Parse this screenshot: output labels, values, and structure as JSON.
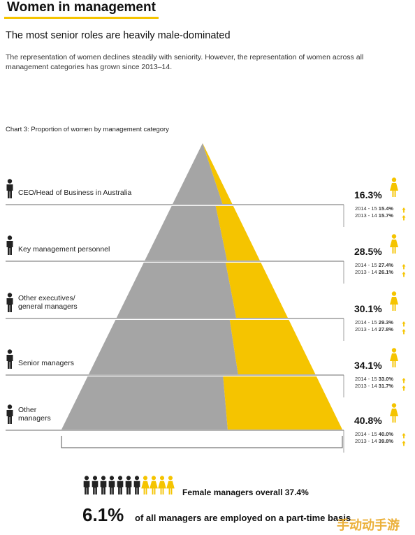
{
  "header": {
    "title": "Women in management",
    "subtitle": "The most senior roles are heavily male-dominated",
    "description": "The representation of women declines steadily with seniority. However, the representation of women across all management categories has grown since 2013–14."
  },
  "colors": {
    "male": "#a5a5a5",
    "female": "#f5c400",
    "text": "#222222"
  },
  "chart_data": {
    "type": "pyramid",
    "title": "Chart 3: Proportion of women by management category",
    "categories": [
      {
        "label": "CEO/Head of Business in Australia",
        "female_pct": 16.3,
        "pct_label": "16.3%",
        "history": [
          {
            "year": "2014 - 15",
            "value": "15.4%"
          },
          {
            "year": "2013 - 14",
            "value": "15.7%"
          }
        ]
      },
      {
        "label": "Key management personnel",
        "female_pct": 28.5,
        "pct_label": "28.5%",
        "history": [
          {
            "year": "2014 - 15",
            "value": "27.4%"
          },
          {
            "year": "2013 - 14",
            "value": "26.1%"
          }
        ]
      },
      {
        "label": "Other executives/ general managers",
        "label_lines": [
          "Other executives/",
          "general managers"
        ],
        "female_pct": 30.1,
        "pct_label": "30.1%",
        "history": [
          {
            "year": "2014 - 15",
            "value": "29.3%"
          },
          {
            "year": "2013 - 14",
            "value": "27.8%"
          }
        ]
      },
      {
        "label": "Senior managers",
        "female_pct": 34.1,
        "pct_label": "34.1%",
        "history": [
          {
            "year": "2014 - 15",
            "value": "33.0%"
          },
          {
            "year": "2013 - 14",
            "value": "31.7%"
          }
        ]
      },
      {
        "label": "Other managers",
        "label_lines": [
          "Other",
          "managers"
        ],
        "female_pct": 40.8,
        "pct_label": "40.8%",
        "history": [
          {
            "year": "2014 - 15",
            "value": "40.0%"
          },
          {
            "year": "2013 - 14",
            "value": "39.8%"
          }
        ]
      }
    ]
  },
  "footer": {
    "overall_text": "Female managers overall 37.4%",
    "overall_pct": 37.4,
    "male_icon_count": 7,
    "female_icon_count": 4,
    "parttime_pct": "6.1%",
    "parttime_text": "of all managers are employed on a part-time basis"
  },
  "watermark": "手动动手游"
}
